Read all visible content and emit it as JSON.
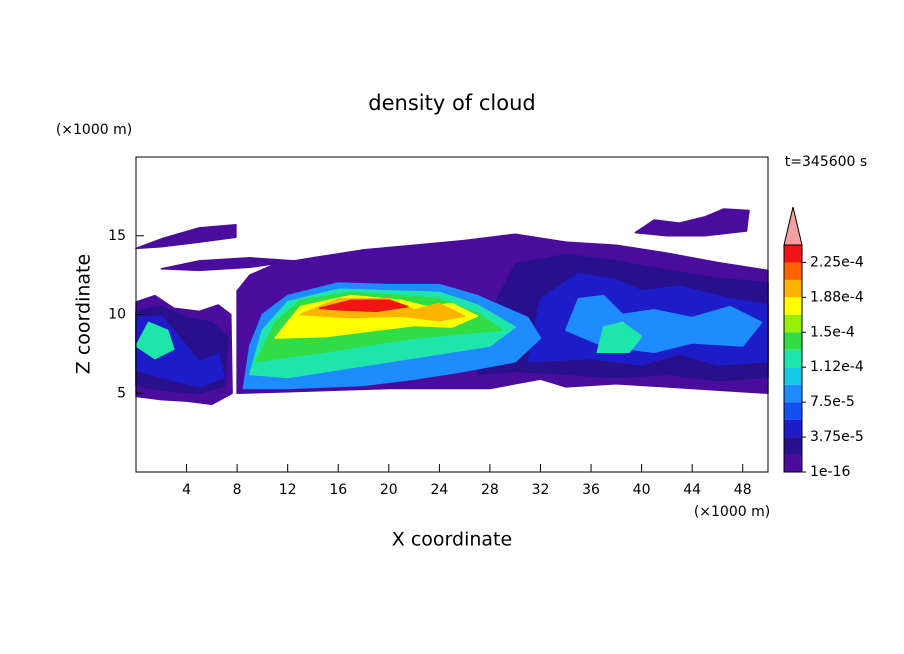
{
  "chart_data": {
    "type": "contour",
    "title": "density of cloud",
    "xlabel": "X coordinate",
    "ylabel": "Z coordinate",
    "x_unit": "(×1000 m)",
    "y_unit": "(×1000 m)",
    "annotation": "t=345600 s",
    "xlim": [
      0,
      50
    ],
    "ylim": [
      0,
      20
    ],
    "xticks": [
      4,
      8,
      12,
      16,
      20,
      24,
      28,
      32,
      36,
      40,
      44,
      48
    ],
    "yticks": [
      5,
      10,
      15
    ],
    "regions": [
      {
        "value": 5e-06,
        "points": [
          [
            0,
            4.8
          ],
          [
            0,
            10.8
          ],
          [
            1.5,
            11.2
          ],
          [
            3,
            10.4
          ],
          [
            5,
            10.2
          ],
          [
            6.5,
            10.6
          ],
          [
            7.5,
            10
          ],
          [
            7.6,
            5
          ],
          [
            6,
            4.3
          ],
          [
            4,
            4.5
          ],
          [
            2,
            4.6
          ]
        ]
      },
      {
        "value": 5e-06,
        "points": [
          [
            8,
            5
          ],
          [
            8,
            11.5
          ],
          [
            9,
            12.5
          ],
          [
            11,
            13.2
          ],
          [
            14,
            13.6
          ],
          [
            18,
            14.1
          ],
          [
            22,
            14.4
          ],
          [
            26,
            14.7
          ],
          [
            30,
            15.1
          ],
          [
            34,
            14.6
          ],
          [
            38,
            14.4
          ],
          [
            42,
            13.9
          ],
          [
            46,
            13.3
          ],
          [
            50,
            12.8
          ],
          [
            50,
            5
          ],
          [
            46,
            5.2
          ],
          [
            42,
            5.4
          ],
          [
            38,
            5.6
          ],
          [
            34,
            5.4
          ],
          [
            32,
            5.9
          ],
          [
            30,
            5.6
          ],
          [
            28,
            5.3
          ],
          [
            24,
            5.3
          ],
          [
            20,
            5.3
          ],
          [
            16,
            5.2
          ],
          [
            12,
            5.1
          ]
        ]
      },
      {
        "value": 5e-06,
        "points": [
          [
            0,
            14.2
          ],
          [
            2,
            14.8
          ],
          [
            5,
            15.5
          ],
          [
            7.9,
            15.7
          ],
          [
            7.9,
            14.9
          ],
          [
            5,
            14.6
          ],
          [
            2,
            14.3
          ]
        ]
      },
      {
        "value": 5e-06,
        "points": [
          [
            2,
            12.9
          ],
          [
            5,
            13.4
          ],
          [
            9,
            13.6
          ],
          [
            12.5,
            13.4
          ],
          [
            9,
            13
          ],
          [
            5,
            12.8
          ]
        ]
      },
      {
        "value": 5e-06,
        "points": [
          [
            39.5,
            15.2
          ],
          [
            41,
            16
          ],
          [
            43,
            15.8
          ],
          [
            45,
            16.2
          ],
          [
            46.5,
            16.7
          ],
          [
            48.5,
            16.6
          ],
          [
            48.3,
            15.3
          ],
          [
            45,
            15
          ],
          [
            42,
            15
          ]
        ]
      },
      {
        "value": 2.5e-05,
        "points": [
          [
            27,
            6.2
          ],
          [
            28,
            10
          ],
          [
            30,
            13.2
          ],
          [
            34,
            13.8
          ],
          [
            38,
            13.4
          ],
          [
            42,
            12.8
          ],
          [
            46,
            12.3
          ],
          [
            50,
            12
          ],
          [
            50,
            6
          ],
          [
            46,
            5.8
          ],
          [
            42,
            6.2
          ],
          [
            38,
            6
          ],
          [
            34,
            6.2
          ],
          [
            30,
            6.4
          ]
        ]
      },
      {
        "value": 2.5e-05,
        "points": [
          [
            0,
            5.5
          ],
          [
            0,
            10.2
          ],
          [
            2,
            10.5
          ],
          [
            4,
            9.8
          ],
          [
            6,
            9.5
          ],
          [
            7.3,
            8.5
          ],
          [
            7,
            5.5
          ],
          [
            5,
            5
          ],
          [
            2,
            5.2
          ]
        ]
      },
      {
        "value": 4.5e-05,
        "points": [
          [
            31,
            7
          ],
          [
            32,
            11
          ],
          [
            35,
            12.6
          ],
          [
            38,
            12.2
          ],
          [
            40,
            11.5
          ],
          [
            43,
            11.8
          ],
          [
            47,
            11
          ],
          [
            50,
            10.6
          ],
          [
            50,
            7
          ],
          [
            46,
            6.8
          ],
          [
            43,
            7.5
          ],
          [
            40,
            6.8
          ],
          [
            36,
            7.2
          ]
        ]
      },
      {
        "value": 4.5e-05,
        "points": [
          [
            0,
            6.5
          ],
          [
            0,
            9.8
          ],
          [
            2,
            9.9
          ],
          [
            3.5,
            8.5
          ],
          [
            5,
            7
          ],
          [
            6.5,
            7.5
          ],
          [
            7,
            6
          ],
          [
            5,
            5.4
          ],
          [
            2,
            6
          ]
        ]
      },
      {
        "value": 8e-05,
        "points": [
          [
            8.5,
            5.3
          ],
          [
            9,
            8
          ],
          [
            10,
            10
          ],
          [
            12,
            11.2
          ],
          [
            16,
            12
          ],
          [
            20,
            11.9
          ],
          [
            24,
            11.9
          ],
          [
            27,
            11.2
          ],
          [
            31,
            9.8
          ],
          [
            32,
            8.5
          ],
          [
            30,
            7
          ],
          [
            26,
            6.4
          ],
          [
            22,
            5.9
          ],
          [
            18,
            5.5
          ],
          [
            12,
            5.3
          ]
        ]
      },
      {
        "value": 8e-05,
        "points": [
          [
            34,
            9
          ],
          [
            35,
            11
          ],
          [
            37,
            11.2
          ],
          [
            38.5,
            10
          ],
          [
            41,
            10.3
          ],
          [
            44,
            9.8
          ],
          [
            47,
            10.5
          ],
          [
            49.5,
            9.5
          ],
          [
            48,
            8
          ],
          [
            44,
            8.2
          ],
          [
            41,
            7.6
          ],
          [
            37,
            8
          ]
        ]
      },
      {
        "value": 0.00012,
        "points": [
          [
            9,
            6.2
          ],
          [
            10,
            9
          ],
          [
            12,
            10.8
          ],
          [
            16,
            11.6
          ],
          [
            20,
            11.5
          ],
          [
            24,
            11.4
          ],
          [
            27,
            10.6
          ],
          [
            30,
            9.2
          ],
          [
            28,
            8
          ],
          [
            24,
            7.5
          ],
          [
            20,
            7
          ],
          [
            16,
            6.5
          ],
          [
            12,
            6
          ]
        ]
      },
      {
        "value": 0.00012,
        "points": [
          [
            0,
            8
          ],
          [
            1,
            9.5
          ],
          [
            2.5,
            9
          ],
          [
            3,
            7.8
          ],
          [
            1.5,
            7.2
          ]
        ]
      },
      {
        "value": 0.00012,
        "points": [
          [
            36.5,
            7.6
          ],
          [
            37,
            9.2
          ],
          [
            38.5,
            9.5
          ],
          [
            40,
            8.6
          ],
          [
            39,
            7.6
          ]
        ]
      },
      {
        "value": 0.00014,
        "points": [
          [
            9.5,
            7
          ],
          [
            11,
            9.5
          ],
          [
            13,
            10.9
          ],
          [
            17,
            11.4
          ],
          [
            21,
            11.2
          ],
          [
            24,
            11
          ],
          [
            27,
            10.1
          ],
          [
            29,
            9
          ],
          [
            26,
            8.8
          ],
          [
            22,
            8.5
          ],
          [
            18,
            8
          ],
          [
            14,
            7.5
          ],
          [
            11,
            7.2
          ]
        ]
      },
      {
        "value": 0.00017,
        "points": [
          [
            11,
            8.5
          ],
          [
            13,
            10.5
          ],
          [
            17,
            11.2
          ],
          [
            21,
            10.9
          ],
          [
            23,
            10.5
          ],
          [
            25,
            10.7
          ],
          [
            27,
            9.9
          ],
          [
            25,
            9.2
          ],
          [
            22,
            9.3
          ],
          [
            19,
            9
          ],
          [
            15,
            8.6
          ]
        ]
      },
      {
        "value": 0.0002,
        "points": [
          [
            13,
            10
          ],
          [
            16,
            11
          ],
          [
            20,
            11
          ],
          [
            22,
            10.3
          ],
          [
            24,
            10.7
          ],
          [
            26,
            9.9
          ],
          [
            24,
            9.6
          ],
          [
            21,
            9.9
          ],
          [
            17,
            9.8
          ]
        ]
      },
      {
        "value": 0.000235,
        "points": [
          [
            14.5,
            10.4
          ],
          [
            17,
            10.9
          ],
          [
            20,
            10.9
          ],
          [
            21.5,
            10.5
          ],
          [
            19,
            10.2
          ],
          [
            16,
            10.3
          ]
        ]
      }
    ],
    "colorbar": {
      "levels": [
        1e-16,
        1.875e-05,
        3.75e-05,
        5.625e-05,
        7.5e-05,
        9.375e-05,
        0.0001125,
        0.00013125,
        0.00015,
        0.00016875,
        0.0001875,
        0.00020625,
        0.000225
      ],
      "colors": [
        "#4a0c9c",
        "#28108c",
        "#1c1cc8",
        "#1450f0",
        "#1e8cff",
        "#14c8e6",
        "#1ee6aa",
        "#32dc46",
        "#96f000",
        "#ffff00",
        "#ffb400",
        "#ff6400",
        "#f01414"
      ],
      "lim": [
        1e-16,
        0.00024375
      ],
      "over_color": "#f5a0a0",
      "ticks": [
        1e-16,
        {
          "value": 3.75e-05,
          "label": "3.75e-5"
        },
        {
          "value": 7.5e-05,
          "label": "7.5e-5"
        },
        {
          "value": 0.0001125,
          "label": "1.12e-4"
        },
        {
          "value": 0.00015,
          "label": "1.5e-4"
        },
        {
          "value": 0.0001875,
          "label": "1.88e-4"
        },
        {
          "value": 0.000225,
          "label": "2.25e-4"
        }
      ]
    }
  }
}
